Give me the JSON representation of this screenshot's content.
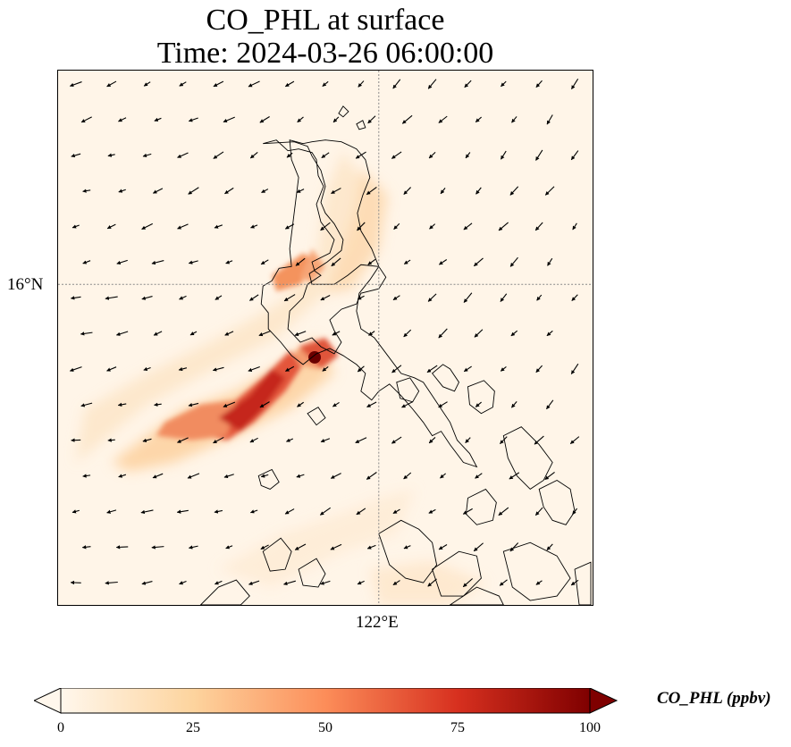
{
  "title": {
    "line1": "CO_PHL at surface",
    "line2": "Time: 2024-03-26 06:00:00"
  },
  "map": {
    "lat_tick_label": "16°N",
    "lon_tick_label": "122°E",
    "gridlines": "dotted"
  },
  "colorbar": {
    "label": "CO_PHL (ppbv)",
    "min": 0,
    "max": 100,
    "ticks": [
      "0",
      "25",
      "50",
      "75",
      "100"
    ],
    "colormap": [
      "#fff7ec",
      "#fdd49e",
      "#fc8d59",
      "#d7301f",
      "#7f0000"
    ],
    "extend": "both"
  },
  "colors": {
    "background": "#fff5e8",
    "coastline": "#000000",
    "wind_arrow": "#000000"
  }
}
